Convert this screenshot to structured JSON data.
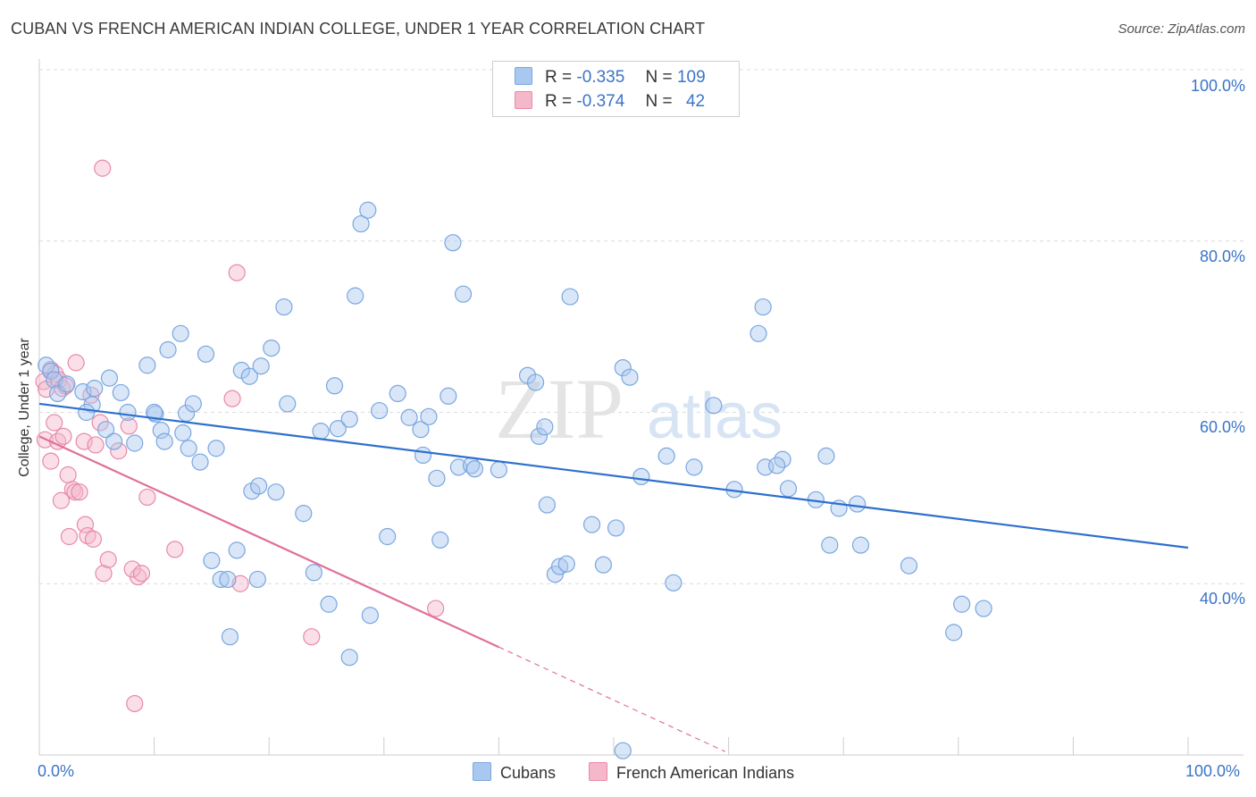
{
  "title": "CUBAN VS FRENCH AMERICAN INDIAN COLLEGE, UNDER 1 YEAR CORRELATION CHART",
  "source": "Source: ZipAtlas.com",
  "watermark": {
    "zip": "ZIP",
    "atlas": "atlas"
  },
  "colors": {
    "cubans_fill": "#a9c8f0",
    "cubans_stroke": "#7aa6e0",
    "cubans_line": "#2e6fcc",
    "french_fill": "#f5b8cb",
    "french_stroke": "#e88aa8",
    "french_line": "#e0709a",
    "tick_text": "#3b74c7",
    "grid": "#dcdcdc"
  },
  "legend": {
    "rows": [
      {
        "r_label": "R =",
        "r_value": "-0.335",
        "n_label": "N =",
        "n_value": "109"
      },
      {
        "r_label": "R =",
        "r_value": "-0.374",
        "n_label": "N =",
        "n_value": "42"
      }
    ]
  },
  "bottom_legend": {
    "cubans": "Cubans",
    "french": "French American Indians"
  },
  "chart_data": {
    "type": "scatter",
    "ylabel": "College, Under 1 year",
    "xlabel": "",
    "xlim": [
      0,
      100
    ],
    "ylim": [
      20,
      100
    ],
    "x_tick_labels": {
      "min": "0.0%",
      "max": "100.0%"
    },
    "y_tick_labels": [
      "40.0%",
      "60.0%",
      "80.0%",
      "100.0%"
    ],
    "y_ticks": [
      40,
      60,
      80,
      100
    ],
    "series": [
      {
        "name": "Cubans",
        "trend": {
          "x0": 0,
          "y0": 61.0,
          "x1": 100,
          "y1": 44.2
        },
        "points": [
          [
            0.6,
            65.5
          ],
          [
            1.0,
            64.8
          ],
          [
            1.3,
            63.8
          ],
          [
            1.6,
            62.2
          ],
          [
            2.4,
            63.3
          ],
          [
            3.8,
            62.4
          ],
          [
            4.6,
            60.9
          ],
          [
            4.1,
            60.0
          ],
          [
            6.1,
            64.0
          ],
          [
            7.1,
            62.3
          ],
          [
            5.8,
            58.0
          ],
          [
            6.5,
            56.6
          ],
          [
            8.3,
            56.4
          ],
          [
            9.4,
            65.5
          ],
          [
            10.1,
            59.8
          ],
          [
            10.6,
            57.9
          ],
          [
            10.9,
            56.6
          ],
          [
            11.2,
            67.3
          ],
          [
            12.3,
            69.2
          ],
          [
            12.8,
            59.9
          ],
          [
            13.4,
            61.0
          ],
          [
            12.5,
            57.6
          ],
          [
            13.0,
            55.8
          ],
          [
            14.0,
            54.2
          ],
          [
            14.5,
            66.8
          ],
          [
            15.4,
            55.8
          ],
          [
            17.6,
            64.9
          ],
          [
            18.3,
            64.2
          ],
          [
            19.3,
            65.4
          ],
          [
            20.2,
            67.5
          ],
          [
            21.3,
            72.3
          ],
          [
            21.6,
            61.0
          ],
          [
            18.5,
            50.8
          ],
          [
            19.1,
            51.4
          ],
          [
            20.6,
            50.7
          ],
          [
            15.0,
            42.7
          ],
          [
            15.8,
            40.5
          ],
          [
            16.4,
            40.5
          ],
          [
            16.6,
            33.8
          ],
          [
            17.2,
            43.9
          ],
          [
            23.0,
            48.2
          ],
          [
            24.5,
            57.8
          ],
          [
            25.7,
            63.1
          ],
          [
            26.0,
            58.1
          ],
          [
            27.0,
            59.2
          ],
          [
            27.5,
            73.6
          ],
          [
            28.0,
            82.0
          ],
          [
            28.6,
            83.6
          ],
          [
            29.6,
            60.2
          ],
          [
            30.3,
            45.5
          ],
          [
            31.2,
            62.2
          ],
          [
            32.2,
            59.4
          ],
          [
            33.2,
            58.0
          ],
          [
            33.4,
            55.0
          ],
          [
            33.9,
            59.5
          ],
          [
            34.6,
            52.3
          ],
          [
            34.9,
            45.1
          ],
          [
            35.6,
            61.9
          ],
          [
            36.0,
            79.8
          ],
          [
            36.9,
            73.8
          ],
          [
            36.5,
            53.6
          ],
          [
            37.6,
            53.8
          ],
          [
            37.9,
            53.4
          ],
          [
            40.0,
            53.3
          ],
          [
            42.5,
            64.3
          ],
          [
            43.2,
            63.5
          ],
          [
            43.5,
            57.2
          ],
          [
            44.0,
            58.3
          ],
          [
            44.2,
            49.2
          ],
          [
            44.9,
            41.1
          ],
          [
            45.3,
            42.0
          ],
          [
            45.9,
            42.3
          ],
          [
            46.2,
            73.5
          ],
          [
            48.1,
            46.9
          ],
          [
            49.1,
            42.2
          ],
          [
            50.2,
            46.5
          ],
          [
            50.8,
            65.2
          ],
          [
            51.4,
            64.1
          ],
          [
            52.4,
            52.5
          ],
          [
            54.6,
            54.9
          ],
          [
            55.2,
            40.1
          ],
          [
            57.0,
            53.6
          ],
          [
            58.7,
            60.8
          ],
          [
            60.5,
            51.0
          ],
          [
            62.6,
            69.2
          ],
          [
            63.0,
            72.3
          ],
          [
            63.2,
            53.6
          ],
          [
            64.7,
            54.5
          ],
          [
            64.2,
            53.8
          ],
          [
            65.2,
            51.1
          ],
          [
            67.6,
            49.8
          ],
          [
            68.5,
            54.9
          ],
          [
            68.8,
            44.5
          ],
          [
            69.6,
            48.8
          ],
          [
            71.2,
            49.3
          ],
          [
            71.5,
            44.5
          ],
          [
            75.7,
            42.1
          ],
          [
            79.6,
            34.3
          ],
          [
            80.3,
            37.6
          ],
          [
            82.2,
            37.1
          ],
          [
            25.2,
            37.6
          ],
          [
            27.0,
            31.4
          ],
          [
            28.8,
            36.3
          ],
          [
            23.9,
            41.3
          ],
          [
            19.0,
            40.5
          ],
          [
            10.0,
            60.0
          ],
          [
            50.8,
            20.5
          ],
          [
            7.7,
            60.0
          ],
          [
            4.8,
            62.8
          ]
        ]
      },
      {
        "name": "French American Indians",
        "trend": {
          "x0": 0,
          "y0": 57.2,
          "x1": 40,
          "y1": 32.6
        },
        "trend_dashed": {
          "x0": 40,
          "y0": 32.6,
          "x1": 59.7,
          "y1": 20.4
        },
        "points": [
          [
            0.4,
            63.6
          ],
          [
            0.6,
            62.7
          ],
          [
            1.0,
            65.0
          ],
          [
            1.4,
            64.5
          ],
          [
            1.7,
            63.8
          ],
          [
            2.0,
            62.8
          ],
          [
            2.3,
            63.1
          ],
          [
            3.2,
            65.8
          ],
          [
            0.5,
            56.8
          ],
          [
            1.0,
            54.3
          ],
          [
            1.3,
            58.8
          ],
          [
            1.6,
            56.6
          ],
          [
            2.1,
            57.2
          ],
          [
            1.9,
            49.7
          ],
          [
            2.5,
            52.7
          ],
          [
            2.6,
            45.5
          ],
          [
            2.9,
            51.0
          ],
          [
            3.1,
            50.7
          ],
          [
            3.5,
            50.7
          ],
          [
            3.9,
            56.6
          ],
          [
            4.0,
            46.9
          ],
          [
            4.2,
            45.6
          ],
          [
            4.7,
            45.2
          ],
          [
            4.9,
            56.2
          ],
          [
            5.3,
            58.8
          ],
          [
            5.6,
            41.2
          ],
          [
            6.0,
            42.8
          ],
          [
            6.9,
            55.5
          ],
          [
            7.8,
            58.4
          ],
          [
            8.6,
            40.8
          ],
          [
            8.1,
            41.7
          ],
          [
            8.9,
            41.2
          ],
          [
            9.4,
            50.1
          ],
          [
            11.8,
            44.0
          ],
          [
            5.5,
            88.5
          ],
          [
            17.2,
            76.3
          ],
          [
            16.8,
            61.6
          ],
          [
            17.5,
            40.0
          ],
          [
            23.7,
            33.8
          ],
          [
            34.5,
            37.1
          ],
          [
            8.3,
            26.0
          ],
          [
            4.5,
            62.0
          ]
        ]
      }
    ]
  }
}
